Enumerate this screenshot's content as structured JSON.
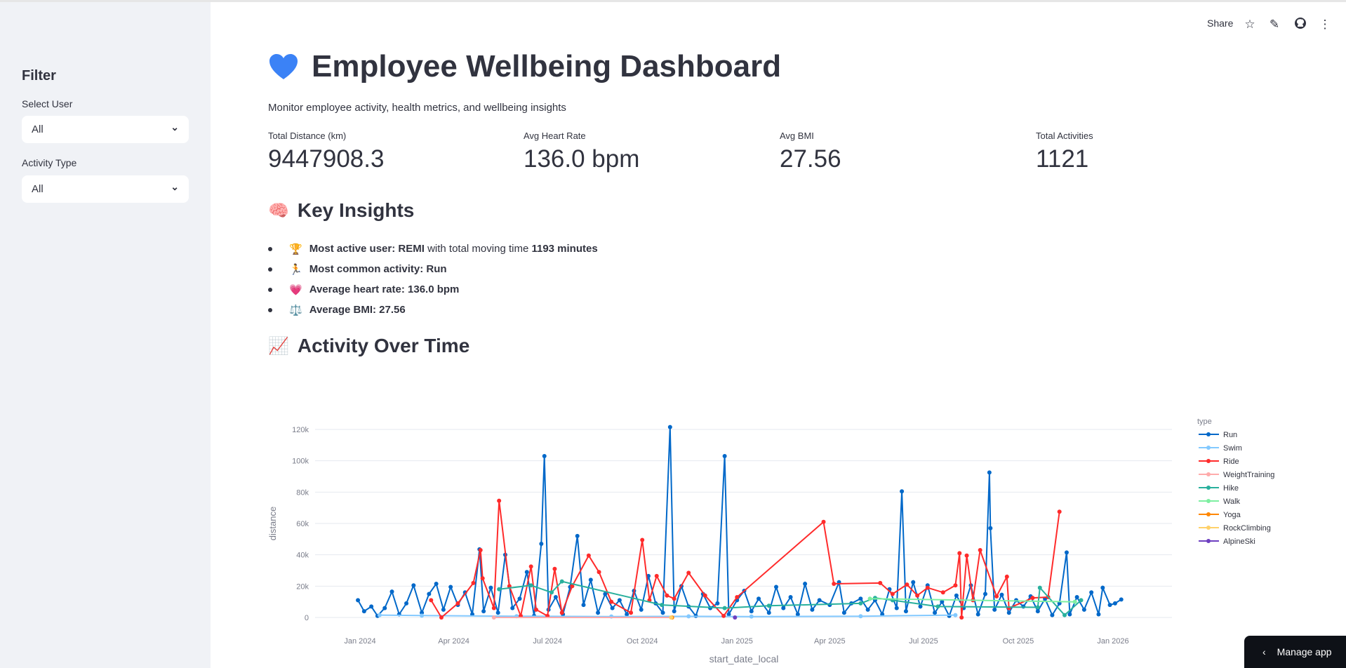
{
  "sidebar": {
    "title": "Filter",
    "user_label": "Select User",
    "user_value": "All",
    "activity_label": "Activity Type",
    "activity_value": "All"
  },
  "toolbar": {
    "share": "Share"
  },
  "header": {
    "title": "Employee Wellbeing Dashboard",
    "subtitle": "Monitor employee activity, health metrics, and wellbeing insights"
  },
  "metrics": [
    {
      "label": "Total Distance (km)",
      "value": "9447908.3"
    },
    {
      "label": "Avg Heart Rate",
      "value": "136.0 bpm"
    },
    {
      "label": "Avg BMI",
      "value": "27.56"
    },
    {
      "label": "Total Activities",
      "value": "1121"
    }
  ],
  "insights": {
    "heading": "Key Insights",
    "emoji": "🧠",
    "items": [
      {
        "emoji": "🏆",
        "bold": "Most active user: REMI",
        "rest": " with total moving time ",
        "bold2": "1193 minutes"
      },
      {
        "emoji": "🏃",
        "bold": "Most common activity: Run",
        "rest": "",
        "bold2": ""
      },
      {
        "emoji": "💗",
        "bold": "Average heart rate: 136.0 bpm",
        "rest": "",
        "bold2": ""
      },
      {
        "emoji": "⚖️",
        "bold": "Average BMI: 27.56",
        "rest": "",
        "bold2": ""
      }
    ]
  },
  "activity": {
    "heading": "Activity Over Time",
    "emoji": "📈"
  },
  "manage_app": "Manage app",
  "chart_data": {
    "type": "line",
    "xlabel": "start_date_local",
    "ylabel": "distance",
    "legend_title": "type",
    "legend_position": "right",
    "ylim": [
      0,
      120000
    ],
    "yticks": [
      0,
      20000,
      40000,
      60000,
      80000,
      100000,
      120000
    ],
    "ytick_labels": [
      "0",
      "20k",
      "40k",
      "60k",
      "80k",
      "100k",
      "120k"
    ],
    "xticks": [
      "2024-01-01",
      "2024-04-01",
      "2024-07-01",
      "2024-10-01",
      "2025-01-01",
      "2025-04-01",
      "2025-07-01",
      "2025-10-01",
      "2026-01-01"
    ],
    "xtick_labels": [
      "Jan 2024",
      "Apr 2024",
      "Jul 2024",
      "Oct 2024",
      "Jan 2025",
      "Apr 2025",
      "Jul 2025",
      "Oct 2025",
      "Jan 2026"
    ],
    "series": [
      {
        "name": "Run",
        "color": "#0068c9",
        "points": [
          [
            "2023-12-30",
            11000
          ],
          [
            "2024-01-05",
            4000
          ],
          [
            "2024-01-12",
            7000
          ],
          [
            "2024-01-18",
            1000
          ],
          [
            "2024-01-25",
            6000
          ],
          [
            "2024-02-01",
            16500
          ],
          [
            "2024-02-08",
            2000
          ],
          [
            "2024-02-15",
            9000
          ],
          [
            "2024-02-22",
            20500
          ],
          [
            "2024-03-01",
            3000
          ],
          [
            "2024-03-08",
            15000
          ],
          [
            "2024-03-15",
            21500
          ],
          [
            "2024-03-22",
            5000
          ],
          [
            "2024-03-29",
            19500
          ],
          [
            "2024-04-05",
            8000
          ],
          [
            "2024-04-12",
            16000
          ],
          [
            "2024-04-19",
            2000
          ],
          [
            "2024-04-26",
            43500
          ],
          [
            "2024-04-30",
            4000
          ],
          [
            "2024-05-07",
            19000
          ],
          [
            "2024-05-14",
            3000
          ],
          [
            "2024-05-21",
            40000
          ],
          [
            "2024-05-28",
            6000
          ],
          [
            "2024-06-04",
            12000
          ],
          [
            "2024-06-11",
            29000
          ],
          [
            "2024-06-18",
            1000
          ],
          [
            "2024-06-25",
            47000
          ],
          [
            "2024-06-28",
            103000
          ],
          [
            "2024-07-02",
            5000
          ],
          [
            "2024-07-09",
            13000
          ],
          [
            "2024-07-16",
            2000
          ],
          [
            "2024-07-23",
            19500
          ],
          [
            "2024-07-30",
            52000
          ],
          [
            "2024-08-05",
            8000
          ],
          [
            "2024-08-12",
            24000
          ],
          [
            "2024-08-19",
            3000
          ],
          [
            "2024-08-26",
            15000
          ],
          [
            "2024-09-02",
            6000
          ],
          [
            "2024-09-09",
            11000
          ],
          [
            "2024-09-16",
            2000
          ],
          [
            "2024-09-23",
            17000
          ],
          [
            "2024-09-30",
            5000
          ],
          [
            "2024-10-07",
            26500
          ],
          [
            "2024-10-14",
            9000
          ],
          [
            "2024-10-21",
            3000
          ],
          [
            "2024-10-28",
            121500
          ],
          [
            "2024-11-01",
            4000
          ],
          [
            "2024-11-08",
            20000
          ],
          [
            "2024-11-15",
            7000
          ],
          [
            "2024-11-22",
            1000
          ],
          [
            "2024-11-29",
            15000
          ],
          [
            "2024-12-06",
            6000
          ],
          [
            "2024-12-13",
            9000
          ],
          [
            "2024-12-20",
            103000
          ],
          [
            "2024-12-24",
            2000
          ],
          [
            "2025-01-01",
            11000
          ],
          [
            "2025-01-08",
            17000
          ],
          [
            "2025-01-15",
            4000
          ],
          [
            "2025-01-22",
            12000
          ],
          [
            "2025-02-01",
            3000
          ],
          [
            "2025-02-08",
            19500
          ],
          [
            "2025-02-15",
            6000
          ],
          [
            "2025-02-22",
            13000
          ],
          [
            "2025-03-01",
            2000
          ],
          [
            "2025-03-08",
            21500
          ],
          [
            "2025-03-15",
            5000
          ],
          [
            "2025-03-22",
            11000
          ],
          [
            "2025-04-01",
            8000
          ],
          [
            "2025-04-10",
            22500
          ],
          [
            "2025-04-15",
            3000
          ],
          [
            "2025-04-22",
            9000
          ],
          [
            "2025-05-01",
            12000
          ],
          [
            "2025-05-08",
            5000
          ],
          [
            "2025-05-15",
            11000
          ],
          [
            "2025-05-22",
            2000
          ],
          [
            "2025-05-29",
            18000
          ],
          [
            "2025-06-05",
            6000
          ],
          [
            "2025-06-10",
            80500
          ],
          [
            "2025-06-14",
            4000
          ],
          [
            "2025-06-21",
            22500
          ],
          [
            "2025-06-28",
            7000
          ],
          [
            "2025-07-05",
            20500
          ],
          [
            "2025-07-12",
            3000
          ],
          [
            "2025-07-19",
            10000
          ],
          [
            "2025-07-26",
            1000
          ],
          [
            "2025-08-02",
            14000
          ],
          [
            "2025-08-09",
            6000
          ],
          [
            "2025-08-16",
            20500
          ],
          [
            "2025-08-23",
            2000
          ],
          [
            "2025-08-30",
            15000
          ],
          [
            "2025-09-03",
            92500
          ],
          [
            "2025-09-04",
            57000
          ],
          [
            "2025-09-08",
            5000
          ],
          [
            "2025-09-15",
            14500
          ],
          [
            "2025-09-22",
            3000
          ],
          [
            "2025-09-29",
            11000
          ],
          [
            "2025-10-06",
            7000
          ],
          [
            "2025-10-13",
            13500
          ],
          [
            "2025-10-20",
            4000
          ],
          [
            "2025-10-27",
            12000
          ],
          [
            "2025-11-03",
            1500
          ],
          [
            "2025-11-10",
            9000
          ],
          [
            "2025-11-17",
            41500
          ],
          [
            "2025-11-20",
            2000
          ],
          [
            "2025-11-27",
            13000
          ],
          [
            "2025-12-04",
            5000
          ],
          [
            "2025-12-11",
            16000
          ],
          [
            "2025-12-18",
            2000
          ],
          [
            "2025-12-22",
            19000
          ],
          [
            "2025-12-29",
            8000
          ],
          [
            "2026-01-03",
            9000
          ],
          [
            "2026-01-09",
            11500
          ]
        ]
      },
      {
        "name": "Swim",
        "color": "#83c9ff",
        "points": [
          [
            "2024-01-20",
            1500
          ],
          [
            "2024-03-01",
            1200
          ],
          [
            "2024-06-01",
            800
          ],
          [
            "2024-09-01",
            600
          ],
          [
            "2024-11-15",
            700
          ],
          [
            "2025-01-15",
            600
          ],
          [
            "2025-05-01",
            800
          ],
          [
            "2025-08-01",
            1500
          ]
        ]
      },
      {
        "name": "Ride",
        "color": "#ff2b2b",
        "points": [
          [
            "2024-03-10",
            11000
          ],
          [
            "2024-03-20",
            0
          ],
          [
            "2024-04-05",
            9000
          ],
          [
            "2024-04-20",
            22000
          ],
          [
            "2024-04-27",
            43000
          ],
          [
            "2024-04-29",
            25000
          ],
          [
            "2024-05-10",
            6000
          ],
          [
            "2024-05-15",
            74500
          ],
          [
            "2024-05-25",
            20000
          ],
          [
            "2024-06-05",
            1000
          ],
          [
            "2024-06-15",
            32500
          ],
          [
            "2024-06-20",
            5000
          ],
          [
            "2024-07-01",
            1000
          ],
          [
            "2024-07-08",
            31000
          ],
          [
            "2024-07-15",
            3000
          ],
          [
            "2024-07-25",
            20000
          ],
          [
            "2024-08-10",
            39500
          ],
          [
            "2024-08-20",
            29000
          ],
          [
            "2024-09-01",
            10000
          ],
          [
            "2024-09-20",
            3000
          ],
          [
            "2024-10-01",
            49500
          ],
          [
            "2024-10-08",
            11000
          ],
          [
            "2024-10-15",
            26500
          ],
          [
            "2024-10-25",
            14000
          ],
          [
            "2024-11-01",
            12000
          ],
          [
            "2024-11-15",
            28500
          ],
          [
            "2024-12-01",
            14000
          ],
          [
            "2024-12-19",
            1000
          ],
          [
            "2025-01-01",
            13000
          ],
          [
            "2025-03-26",
            61000
          ],
          [
            "2025-04-05",
            21500
          ],
          [
            "2025-05-20",
            22000
          ],
          [
            "2025-06-01",
            15000
          ],
          [
            "2025-06-15",
            21000
          ],
          [
            "2025-06-25",
            14000
          ],
          [
            "2025-07-05",
            19000
          ],
          [
            "2025-07-20",
            16000
          ],
          [
            "2025-08-01",
            20500
          ],
          [
            "2025-08-05",
            41000
          ],
          [
            "2025-08-07",
            0
          ],
          [
            "2025-08-12",
            39500
          ],
          [
            "2025-08-18",
            11000
          ],
          [
            "2025-08-25",
            43000
          ],
          [
            "2025-09-10",
            13500
          ],
          [
            "2025-09-20",
            26000
          ],
          [
            "2025-09-22",
            6000
          ],
          [
            "2025-10-15",
            12500
          ],
          [
            "2025-10-30",
            13000
          ],
          [
            "2025-11-10",
            67500
          ]
        ]
      },
      {
        "name": "WeightTraining",
        "color": "#ffabab",
        "points": [
          [
            "2024-05-10",
            0
          ],
          [
            "2024-10-30",
            0
          ]
        ]
      },
      {
        "name": "Hike",
        "color": "#29b09d",
        "points": [
          [
            "2024-05-15",
            18000
          ],
          [
            "2024-06-15",
            20500
          ],
          [
            "2024-07-05",
            16000
          ],
          [
            "2024-07-15",
            23000
          ],
          [
            "2024-10-20",
            8000
          ],
          [
            "2024-12-20",
            6000
          ],
          [
            "2025-02-01",
            7500
          ],
          [
            "2025-05-01",
            9000
          ],
          [
            "2025-05-15",
            12500
          ],
          [
            "2025-06-01",
            11000
          ],
          [
            "2025-07-15",
            7000
          ],
          [
            "2025-10-20",
            6500
          ],
          [
            "2025-10-22",
            19000
          ],
          [
            "2025-11-15",
            1500
          ],
          [
            "2025-12-01",
            11000
          ]
        ]
      },
      {
        "name": "Walk",
        "color": "#7defa1",
        "points": [
          [
            "2025-05-10",
            12000
          ],
          [
            "2025-11-25",
            10000
          ]
        ]
      },
      {
        "name": "Yoga",
        "color": "#ff8700",
        "points": [
          [
            "2024-10-30",
            0
          ]
        ]
      },
      {
        "name": "RockClimbing",
        "color": "#ffd16a",
        "points": [
          [
            "2024-10-29",
            0
          ]
        ]
      },
      {
        "name": "AlpineSki",
        "color": "#6d3fc0",
        "points": [
          [
            "2024-12-30",
            0
          ]
        ]
      }
    ]
  }
}
